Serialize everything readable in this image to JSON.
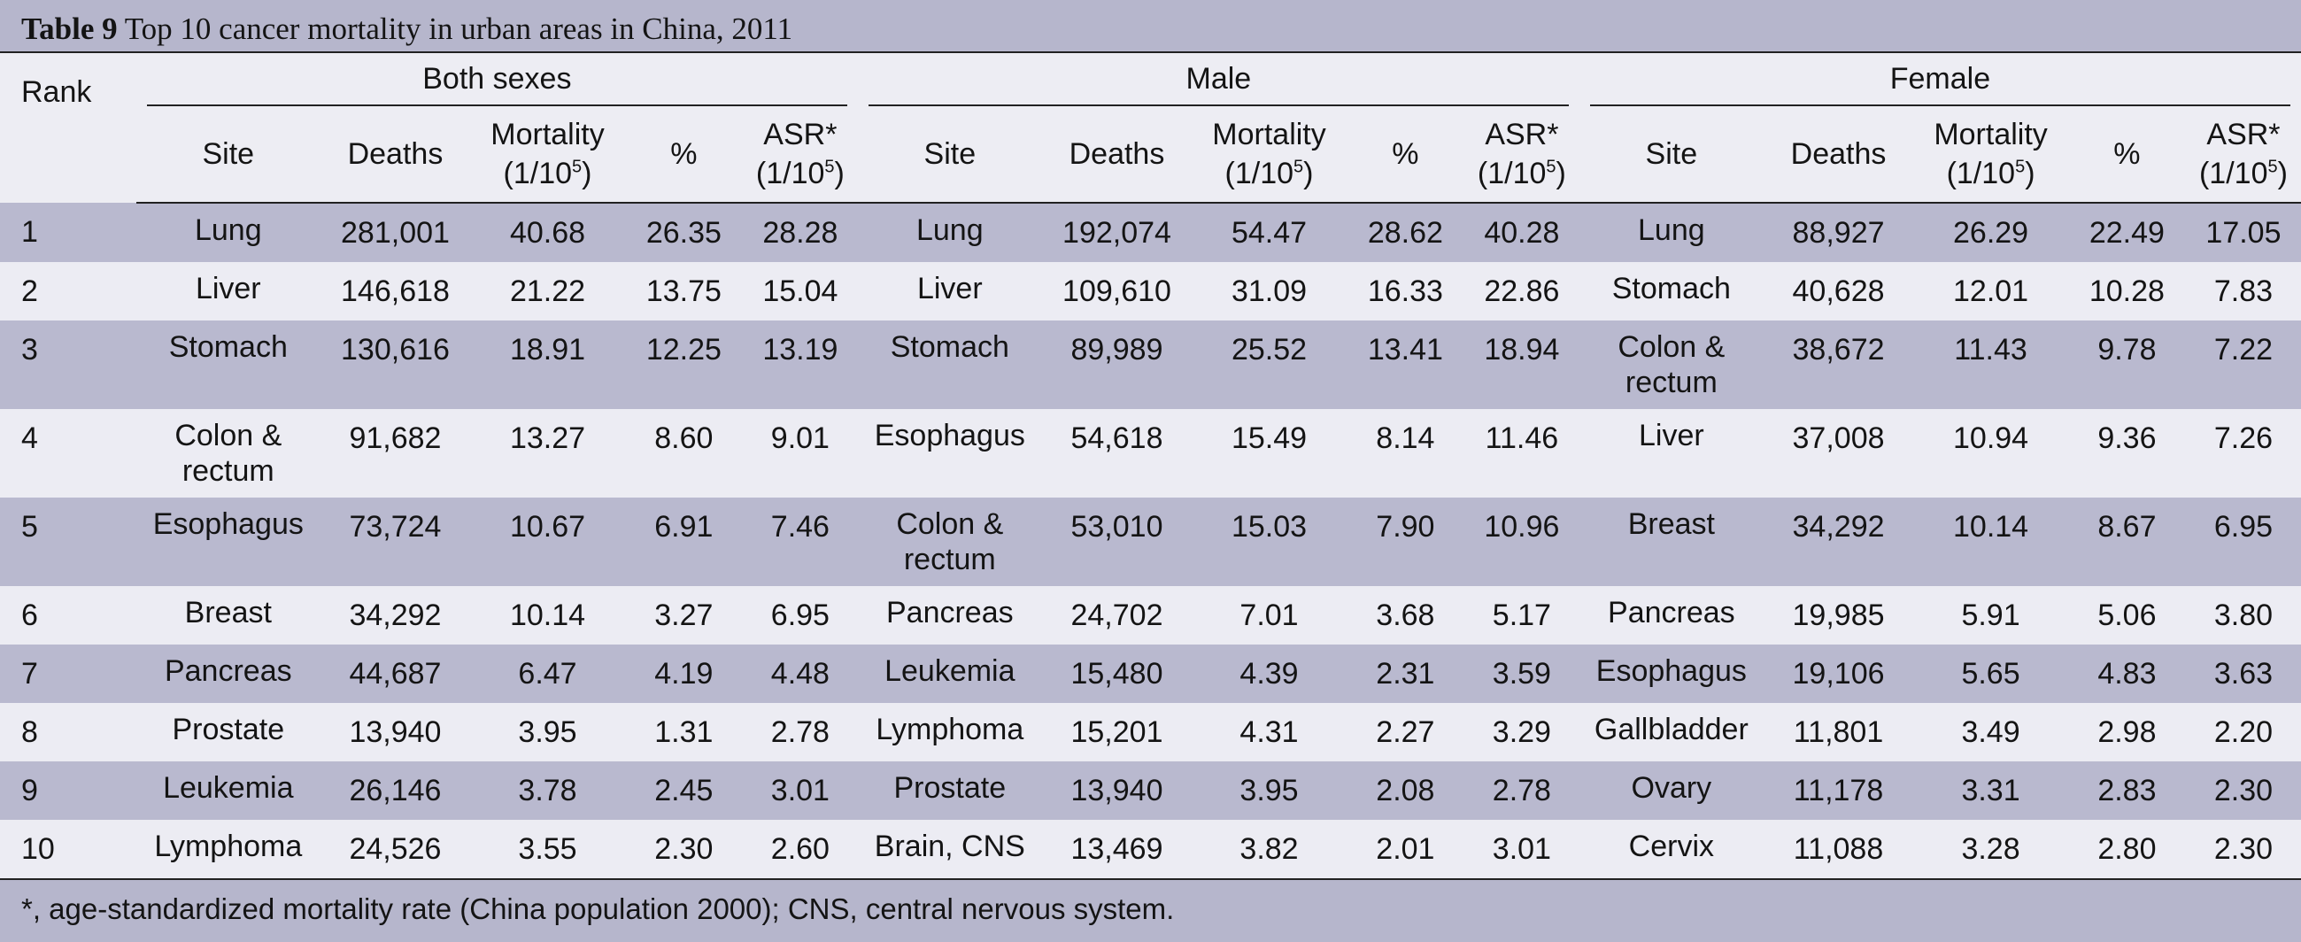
{
  "caption": {
    "label": "Table 9",
    "text": "Top 10 cancer mortality in urban areas in China, 2011"
  },
  "header": {
    "rank": "Rank",
    "groups": [
      "Both sexes",
      "Male",
      "Female"
    ],
    "site": "Site",
    "deaths": "Deaths",
    "mortality_line1": "Mortality",
    "mortality_line2_pre": "(1/10",
    "mortality_line2_sup": "5",
    "mortality_line2_post": ")",
    "pct": "%",
    "asr_line1": "ASR*",
    "asr_line2_pre": "(1/10",
    "asr_line2_sup": "5",
    "asr_line2_post": ")"
  },
  "rows": [
    {
      "rank": "1",
      "both": [
        "Lung",
        "281,001",
        "40.68",
        "26.35",
        "28.28"
      ],
      "male": [
        "Lung",
        "192,074",
        "54.47",
        "28.62",
        "40.28"
      ],
      "female": [
        "Lung",
        "88,927",
        "26.29",
        "22.49",
        "17.05"
      ]
    },
    {
      "rank": "2",
      "both": [
        "Liver",
        "146,618",
        "21.22",
        "13.75",
        "15.04"
      ],
      "male": [
        "Liver",
        "109,610",
        "31.09",
        "16.33",
        "22.86"
      ],
      "female": [
        "Stomach",
        "40,628",
        "12.01",
        "10.28",
        "7.83"
      ]
    },
    {
      "rank": "3",
      "both": [
        "Stomach",
        "130,616",
        "18.91",
        "12.25",
        "13.19"
      ],
      "male": [
        "Stomach",
        "89,989",
        "25.52",
        "13.41",
        "18.94"
      ],
      "female": [
        "Colon & rectum",
        "38,672",
        "11.43",
        "9.78",
        "7.22"
      ]
    },
    {
      "rank": "4",
      "both": [
        "Colon & rectum",
        "91,682",
        "13.27",
        "8.60",
        "9.01"
      ],
      "male": [
        "Esophagus",
        "54,618",
        "15.49",
        "8.14",
        "11.46"
      ],
      "female": [
        "Liver",
        "37,008",
        "10.94",
        "9.36",
        "7.26"
      ]
    },
    {
      "rank": "5",
      "both": [
        "Esophagus",
        "73,724",
        "10.67",
        "6.91",
        "7.46"
      ],
      "male": [
        "Colon & rectum",
        "53,010",
        "15.03",
        "7.90",
        "10.96"
      ],
      "female": [
        "Breast",
        "34,292",
        "10.14",
        "8.67",
        "6.95"
      ]
    },
    {
      "rank": "6",
      "both": [
        "Breast",
        "34,292",
        "10.14",
        "3.27",
        "6.95"
      ],
      "male": [
        "Pancreas",
        "24,702",
        "7.01",
        "3.68",
        "5.17"
      ],
      "female": [
        "Pancreas",
        "19,985",
        "5.91",
        "5.06",
        "3.80"
      ]
    },
    {
      "rank": "7",
      "both": [
        "Pancreas",
        "44,687",
        "6.47",
        "4.19",
        "4.48"
      ],
      "male": [
        "Leukemia",
        "15,480",
        "4.39",
        "2.31",
        "3.59"
      ],
      "female": [
        "Esophagus",
        "19,106",
        "5.65",
        "4.83",
        "3.63"
      ]
    },
    {
      "rank": "8",
      "both": [
        "Prostate",
        "13,940",
        "3.95",
        "1.31",
        "2.78"
      ],
      "male": [
        "Lymphoma",
        "15,201",
        "4.31",
        "2.27",
        "3.29"
      ],
      "female": [
        "Gallbladder",
        "11,801",
        "3.49",
        "2.98",
        "2.20"
      ]
    },
    {
      "rank": "9",
      "both": [
        "Leukemia",
        "26,146",
        "3.78",
        "2.45",
        "3.01"
      ],
      "male": [
        "Prostate",
        "13,940",
        "3.95",
        "2.08",
        "2.78"
      ],
      "female": [
        "Ovary",
        "11,178",
        "3.31",
        "2.83",
        "2.30"
      ]
    },
    {
      "rank": "10",
      "both": [
        "Lymphoma",
        "24,526",
        "3.55",
        "2.30",
        "2.60"
      ],
      "male": [
        "Brain, CNS",
        "13,469",
        "3.82",
        "2.01",
        "3.01"
      ],
      "female": [
        "Cervix",
        "11,088",
        "3.28",
        "2.80",
        "2.30"
      ]
    }
  ],
  "footnote": "*, age-standardized mortality rate (China population 2000); CNS, central nervous system."
}
